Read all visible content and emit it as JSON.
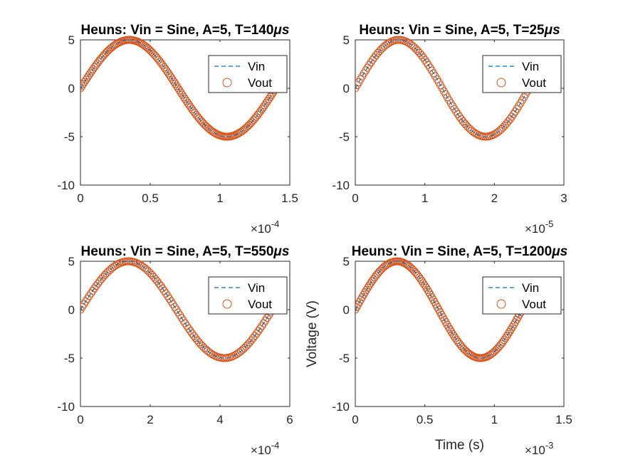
{
  "colors": {
    "vin": "#0072BD",
    "vout": "#D95319",
    "axis": "#262626"
  },
  "chart_data": [
    {
      "type": "line",
      "title_prefix": "Heuns: Vin = Sine, A=5, T=140",
      "title_unit": "μs",
      "xlim": [
        0,
        1.5
      ],
      "ylim": [
        -10,
        5
      ],
      "xticks": [
        "0",
        "0.5",
        "1",
        "1.5"
      ],
      "yticks": [
        "-10",
        "-5",
        "0",
        "5"
      ],
      "exponent_base": "×10",
      "exponent_power": "-4",
      "xlabel": "",
      "ylabel": "",
      "period": 1.4,
      "amplitude": 5,
      "x_end": 1.4,
      "legend": [
        "Vin",
        "Vout"
      ],
      "legend_position": "top-right",
      "series": [
        {
          "name": "Vin",
          "style": "dashed-line",
          "function": "5*sin(2*pi*t/1.4)",
          "x_range": [
            0,
            1.4
          ]
        },
        {
          "name": "Vout",
          "style": "circle-markers",
          "function": "5*sin(2*pi*t/1.4)",
          "x_range": [
            0,
            1.4
          ]
        }
      ]
    },
    {
      "type": "line",
      "title_prefix": "Heuns: Vin = Sine, A=5, T=25",
      "title_unit": "μs",
      "xlim": [
        0,
        3
      ],
      "ylim": [
        -10,
        5
      ],
      "xticks": [
        "0",
        "1",
        "2",
        "3"
      ],
      "yticks": [
        "-10",
        "-5",
        "0",
        "5"
      ],
      "exponent_base": "×10",
      "exponent_power": "-5",
      "xlabel": "",
      "ylabel": "",
      "period": 2.5,
      "amplitude": 5,
      "x_end": 2.5,
      "legend": [
        "Vin",
        "Vout"
      ],
      "legend_position": "top-right",
      "series": [
        {
          "name": "Vin",
          "style": "dashed-line",
          "function": "5*sin(2*pi*t/2.5)",
          "x_range": [
            0,
            2.5
          ]
        },
        {
          "name": "Vout",
          "style": "circle-markers",
          "function": "5*sin(2*pi*t/2.5)",
          "x_range": [
            0,
            2.5
          ]
        }
      ]
    },
    {
      "type": "line",
      "title_prefix": "Heuns: Vin = Sine, A=5, T=550",
      "title_unit": "μs",
      "xlim": [
        0,
        6
      ],
      "ylim": [
        -10,
        5
      ],
      "xticks": [
        "0",
        "2",
        "4",
        "6"
      ],
      "yticks": [
        "-10",
        "-5",
        "0",
        "5"
      ],
      "exponent_base": "×10",
      "exponent_power": "-4",
      "xlabel": "",
      "ylabel": "",
      "period": 5.5,
      "amplitude": 5,
      "x_end": 5.5,
      "legend": [
        "Vin",
        "Vout"
      ],
      "legend_position": "top-right",
      "series": [
        {
          "name": "Vin",
          "style": "dashed-line",
          "function": "5*sin(2*pi*t/5.5)",
          "x_range": [
            0,
            5.5
          ]
        },
        {
          "name": "Vout",
          "style": "circle-markers",
          "function": "5*sin(2*pi*t/5.5)",
          "x_range": [
            0,
            5.5
          ]
        }
      ]
    },
    {
      "type": "line",
      "title_prefix": "Heuns: Vin = Sine, A=5, T=1200",
      "title_unit": "μs",
      "xlim": [
        0,
        1.5
      ],
      "ylim": [
        -10,
        5
      ],
      "xticks": [
        "0",
        "0.5",
        "1",
        "1.5"
      ],
      "yticks": [
        "-10",
        "-5",
        "0",
        "5"
      ],
      "exponent_base": "×10",
      "exponent_power": "-3",
      "xlabel": "Time (s)",
      "ylabel": "Voltage (V)",
      "period": 1.2,
      "amplitude": 5,
      "x_end": 1.2,
      "legend": [
        "Vin",
        "Vout"
      ],
      "legend_position": "top-right",
      "series": [
        {
          "name": "Vin",
          "style": "dashed-line",
          "function": "5*sin(2*pi*t/1.2)",
          "x_range": [
            0,
            1.2
          ]
        },
        {
          "name": "Vout",
          "style": "circle-markers",
          "function": "5*sin(2*pi*t/1.2)",
          "x_range": [
            0,
            1.2
          ]
        }
      ]
    }
  ]
}
